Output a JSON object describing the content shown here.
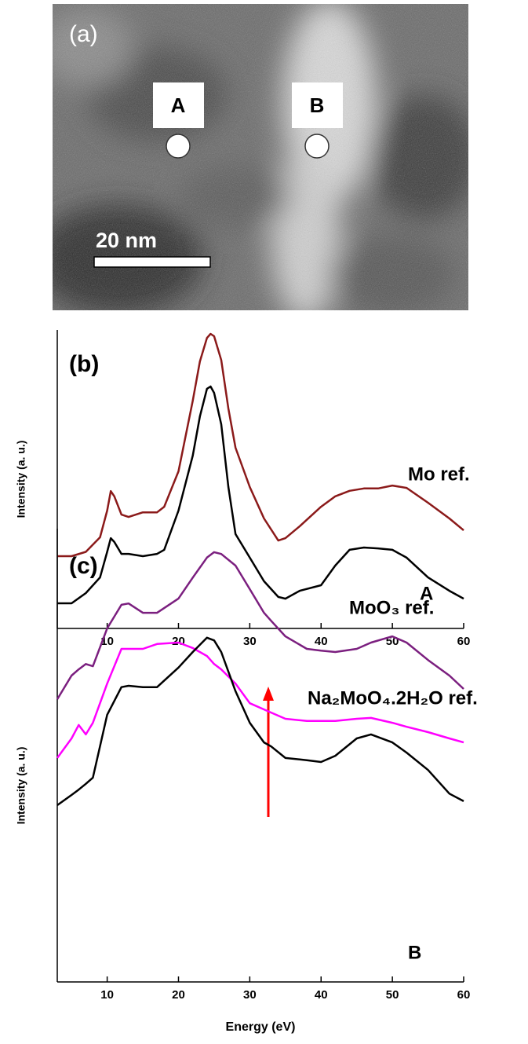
{
  "image_panel": {
    "panel_label": "(a)",
    "points": [
      "A",
      "B"
    ],
    "scale_bar": "20 nm"
  },
  "chart_data": [
    {
      "type": "line",
      "title": "(b)",
      "y_label": "Intensity (a. u.)",
      "x": [
        3,
        5,
        7,
        9,
        10,
        10.5,
        11,
        12,
        13,
        15,
        17,
        18,
        20,
        22,
        23,
        24,
        24.5,
        25,
        26,
        27,
        28,
        30,
        32,
        34,
        35,
        37,
        40,
        42,
        44,
        46,
        48,
        50,
        52,
        55,
        58,
        60
      ],
      "series": [
        {
          "name": "Mo ref.",
          "color": "#8b1a1a",
          "values": [
            2.35,
            2.35,
            2.5,
            3.0,
            3.92,
            4.59,
            4.41,
            3.78,
            3.7,
            3.86,
            3.86,
            4.05,
            5.27,
            7.7,
            9.05,
            9.86,
            10.0,
            9.92,
            9.1,
            7.43,
            6.08,
            4.73,
            3.65,
            2.89,
            2.97,
            3.38,
            4.05,
            4.41,
            4.6,
            4.68,
            4.68,
            4.78,
            4.7,
            4.19,
            3.65,
            3.24
          ]
        },
        {
          "name": "A",
          "color": "#000000",
          "values": [
            0.73,
            0.73,
            1.08,
            1.62,
            2.5,
            2.97,
            2.84,
            2.43,
            2.43,
            2.35,
            2.43,
            2.57,
            3.92,
            5.81,
            7.16,
            8.11,
            8.19,
            7.97,
            6.89,
            4.73,
            3.11,
            2.3,
            1.49,
            0.95,
            0.89,
            1.16,
            1.35,
            2.03,
            2.57,
            2.65,
            2.62,
            2.57,
            2.3,
            1.62,
            1.16,
            0.89
          ]
        }
      ],
      "xlim": [
        3,
        60
      ],
      "xticks": [
        10,
        20,
        30,
        40,
        50,
        60
      ],
      "ylim": [
        0,
        10
      ]
    },
    {
      "type": "line",
      "title": "(c)",
      "y_label": "Intensity (a. u.)",
      "x_label": "Energy (eV)",
      "x": [
        3,
        5,
        6,
        7,
        8,
        10,
        12,
        13,
        15,
        17,
        20,
        22,
        24,
        25,
        26,
        28,
        30,
        32,
        33,
        35,
        38,
        40,
        42,
        45,
        47,
        50,
        52,
        55,
        58,
        60
      ],
      "series": [
        {
          "name": "MoO₃ ref.",
          "color": "#7b1f7f",
          "values": [
            6.26,
            6.79,
            6.93,
            7.05,
            7.0,
            7.85,
            8.38,
            8.41,
            8.2,
            8.2,
            8.52,
            8.99,
            9.44,
            9.56,
            9.52,
            9.26,
            8.73,
            8.2,
            8.02,
            7.67,
            7.39,
            7.35,
            7.32,
            7.39,
            7.53,
            7.67,
            7.53,
            7.14,
            6.79,
            6.49
          ]
        },
        {
          "name": "Na₂MoO₄.2H₂O ref.",
          "color": "#ff00ff",
          "values": [
            4.94,
            5.38,
            5.68,
            5.47,
            5.73,
            6.61,
            7.39,
            7.39,
            7.39,
            7.5,
            7.53,
            7.41,
            7.23,
            7.05,
            6.93,
            6.61,
            6.17,
            6.03,
            5.96,
            5.82,
            5.77,
            5.77,
            5.77,
            5.82,
            5.84,
            5.73,
            5.64,
            5.52,
            5.38,
            5.29
          ]
        },
        {
          "name": "B",
          "color": "#000000",
          "values": [
            3.88,
            4.11,
            4.23,
            4.36,
            4.5,
            5.91,
            6.53,
            6.56,
            6.53,
            6.53,
            6.97,
            7.32,
            7.64,
            7.58,
            7.32,
            6.44,
            5.73,
            5.29,
            5.2,
            4.94,
            4.89,
            4.85,
            4.99,
            5.38,
            5.47,
            5.29,
            5.06,
            4.67,
            4.14,
            3.97
          ]
        }
      ],
      "xlim": [
        3,
        60
      ],
      "xticks": [
        10,
        20,
        30,
        40,
        50,
        60
      ],
      "ylim": [
        0,
        10
      ]
    }
  ]
}
